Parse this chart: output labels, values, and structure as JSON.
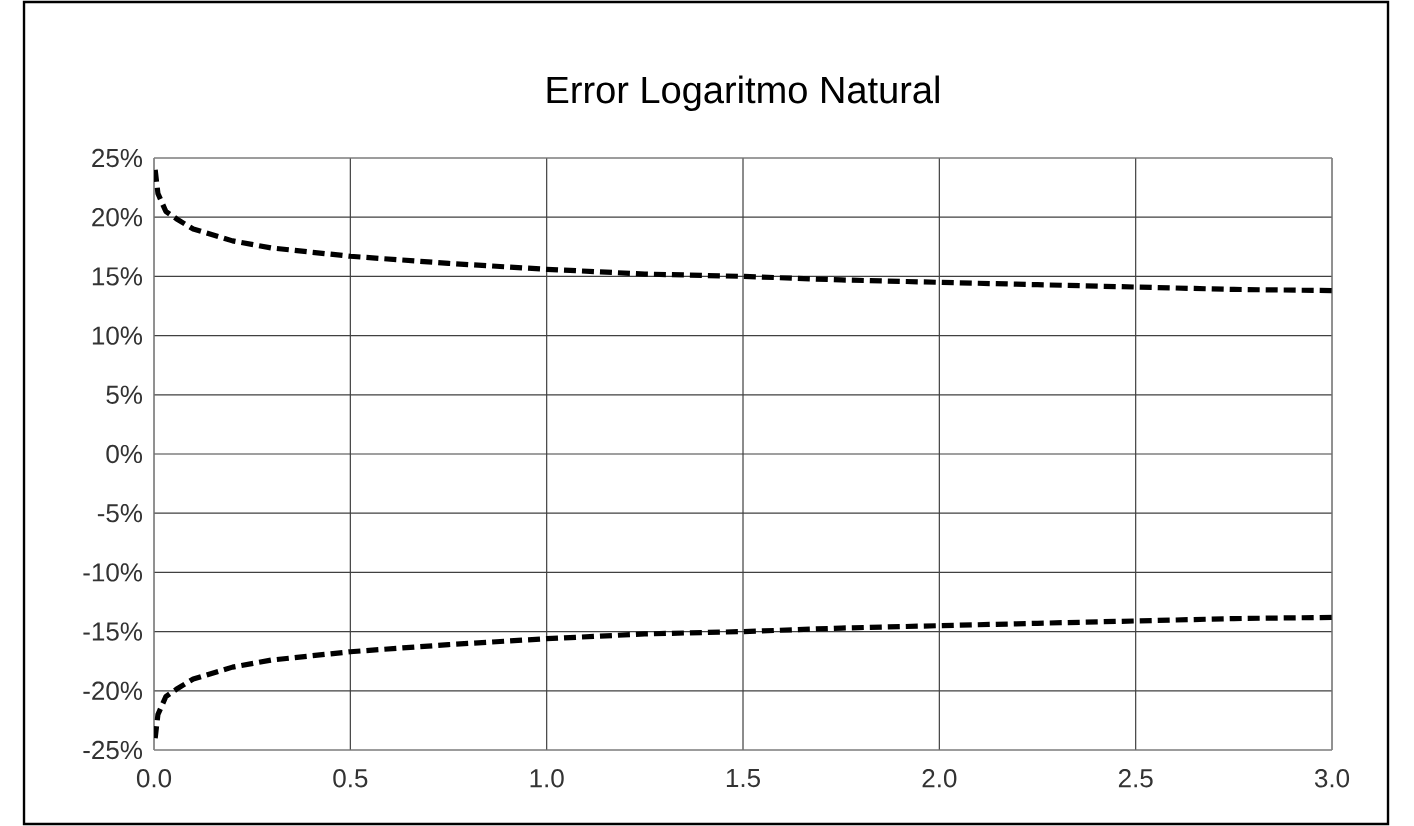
{
  "chart_data": {
    "type": "line",
    "title": "Error Logaritmo Natural",
    "xlim": [
      0,
      3
    ],
    "xticks": [
      {
        "value": 0,
        "label": "0.0"
      },
      {
        "value": 0.5,
        "label": "0.5"
      },
      {
        "value": 1,
        "label": "1.0"
      },
      {
        "value": 1.5,
        "label": "1.5"
      },
      {
        "value": 2,
        "label": "2.0"
      },
      {
        "value": 2.5,
        "label": "2.5"
      },
      {
        "value": 3,
        "label": "3.0"
      }
    ],
    "ylim": [
      -25,
      25
    ],
    "yticks": [
      {
        "value": 25,
        "label": "25%"
      },
      {
        "value": 20,
        "label": "20%"
      },
      {
        "value": 15,
        "label": "15%"
      },
      {
        "value": 10,
        "label": "10%"
      },
      {
        "value": 5,
        "label": "5%"
      },
      {
        "value": 0,
        "label": "0%"
      },
      {
        "value": -5,
        "label": "-5%"
      },
      {
        "value": -10,
        "label": "-10%"
      },
      {
        "value": -15,
        "label": "-15%"
      },
      {
        "value": -20,
        "label": "-20%"
      },
      {
        "value": -25,
        "label": "-25%"
      }
    ],
    "grid": true,
    "line_style": "dashed",
    "marker": "none",
    "x": [
      0.003,
      0.01,
      0.03,
      0.06,
      0.1,
      0.2,
      0.3,
      0.5,
      0.75,
      1.0,
      1.25,
      1.5,
      1.75,
      2.0,
      2.25,
      2.5,
      2.75,
      3.0
    ],
    "series": [
      {
        "color": "#000000",
        "values": [
          24,
          22,
          20.5,
          19.8,
          19,
          18,
          17.4,
          16.7,
          16.1,
          15.6,
          15.2,
          15,
          14.7,
          14.5,
          14.3,
          14.1,
          13.9,
          13.8
        ]
      },
      {
        "color": "#000000",
        "values": [
          -24,
          -22,
          -20.5,
          -19.8,
          -19,
          -18,
          -17.4,
          -16.7,
          -16.1,
          -15.6,
          -15.2,
          -15,
          -14.7,
          -14.5,
          -14.3,
          -14.1,
          -13.9,
          -13.8
        ]
      }
    ]
  }
}
